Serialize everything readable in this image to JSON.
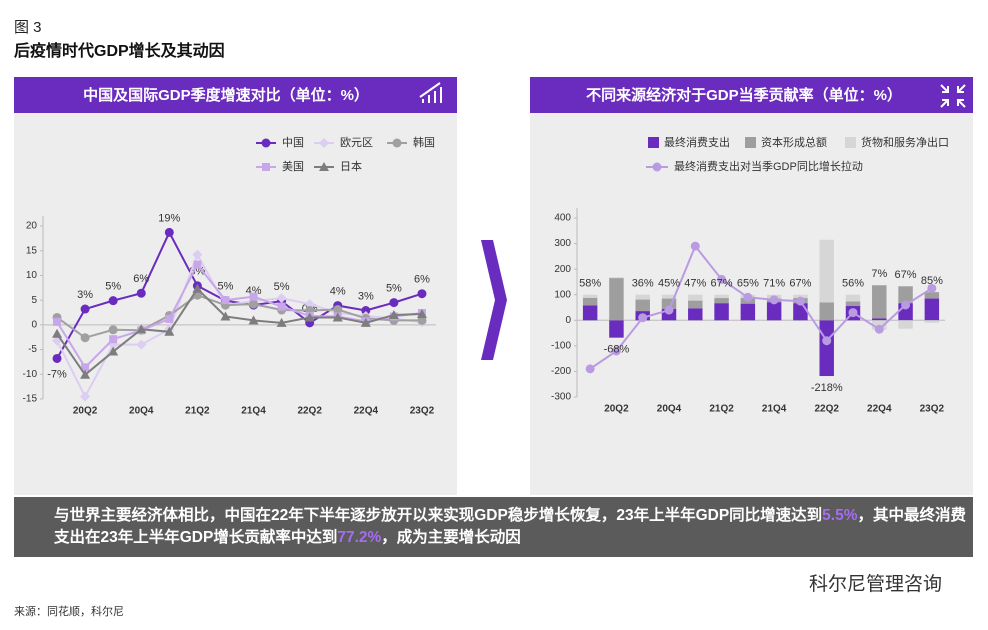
{
  "figure_label": "图 3",
  "title": "后疫情时代GDP增长及其动因",
  "banner": [
    "与世界主要经济体相比，中国在22年下半年逐步放开以来实现GDP稳步增长恢复，23年上半年GDP同比增速达到",
    "5.5%",
    "，其中最终消费支出在23年上半年GDP增长贡献率中达到",
    "77.2%",
    "，成为主要增长动因"
  ],
  "source": "来源：同花顺，科尔尼",
  "watermark": "科尔尼管理咨询",
  "chart_data": [
    {
      "type": "line",
      "title": "中国及国际GDP季度增速对比（单位：%）",
      "categories": [
        null,
        "20Q2",
        null,
        "20Q4",
        null,
        "21Q2",
        null,
        "21Q4",
        null,
        "22Q2",
        null,
        "22Q4",
        null,
        "23Q2"
      ],
      "ylim": [
        -15,
        20
      ],
      "yticks": [
        -15,
        -10,
        -5,
        0,
        5,
        10,
        15,
        20
      ],
      "series": [
        {
          "name": "中国",
          "color": "#6a2bbf",
          "marker": "circle",
          "values": [
            -6.8,
            3.2,
            4.9,
            6.4,
            18.7,
            7.9,
            4.9,
            4.0,
            4.8,
            0.4,
            3.9,
            2.9,
            4.5,
            6.3
          ],
          "value_labels": [
            "-7%",
            "3%",
            "5%",
            "6%",
            "19%",
            "8%",
            "5%",
            "4%",
            "5%",
            "0%",
            "4%",
            "3%",
            "5%",
            "6%"
          ]
        },
        {
          "name": "欧元区",
          "color": "#dccdf2",
          "marker": "diamond",
          "values": [
            -3.2,
            -14.5,
            -4.0,
            -4.0,
            -0.9,
            14.2,
            4.0,
            4.8,
            5.4,
            4.2,
            2.4,
            1.8,
            1.3,
            0.5
          ]
        },
        {
          "name": "韩国",
          "color": "#a0a0a0",
          "marker": "circle",
          "values": [
            1.5,
            -2.6,
            -1.0,
            -1.1,
            1.9,
            6.0,
            4.0,
            4.2,
            3.0,
            2.9,
            3.1,
            1.3,
            0.9,
            0.9
          ]
        },
        {
          "name": "美国",
          "color": "#c7a6ea",
          "marker": "square",
          "values": [
            0.6,
            -8.6,
            -2.9,
            -1.1,
            1.2,
            12.2,
            5.0,
            5.7,
            3.7,
            1.8,
            1.7,
            0.7,
            1.7,
            2.4
          ]
        },
        {
          "name": "日本",
          "color": "#7d7d7d",
          "marker": "triangle",
          "values": [
            -1.8,
            -10.1,
            -5.4,
            -0.9,
            -1.4,
            7.3,
            1.7,
            0.9,
            0.4,
            1.5,
            1.5,
            0.4,
            2.0,
            2.2
          ]
        }
      ]
    },
    {
      "type": "stacked_bar_line",
      "title": "不同来源经济对于GDP当季贡献率（单位：%）",
      "categories": [
        null,
        "20Q2",
        null,
        "20Q4",
        null,
        "21Q2",
        null,
        "21Q4",
        null,
        "22Q2",
        null,
        "22Q4",
        null,
        "23Q2"
      ],
      "ylim": [
        -300,
        400
      ],
      "yticks": [
        -300,
        -200,
        -100,
        0,
        100,
        200,
        300,
        400
      ],
      "series": [
        {
          "name": "最终消费支出",
          "color": "#6a2bbf",
          "kind": "bar",
          "values": [
            58,
            -68,
            36,
            45,
            47,
            67,
            65,
            71,
            67,
            -218,
            56,
            7,
            67,
            85
          ],
          "value_labels": [
            "58%",
            "-68%",
            "36%",
            "45%",
            "47%",
            "67%",
            "65%",
            "71%",
            "67%",
            "-218%",
            "56%",
            "7%",
            "67%",
            "85%"
          ]
        },
        {
          "name": "资本形成总额",
          "color": "#9e9e9e",
          "kind": "bar",
          "values": [
            30,
            165,
            45,
            40,
            30,
            20,
            22,
            14,
            20,
            70,
            18,
            130,
            66,
            25
          ]
        },
        {
          "name": "货物和服务净出口",
          "color": "#d6d6d6",
          "kind": "bar",
          "values": [
            12,
            3,
            19,
            15,
            23,
            13,
            13,
            15,
            13,
            245,
            26,
            -37,
            -33,
            -10
          ]
        },
        {
          "name": "最终消费支出对当季GDP同比增长拉动",
          "color": "#b99be2",
          "kind": "line",
          "values": [
            -190,
            -120,
            10,
            40,
            290,
            160,
            90,
            80,
            75,
            -80,
            30,
            -35,
            60,
            125
          ]
        }
      ]
    }
  ]
}
